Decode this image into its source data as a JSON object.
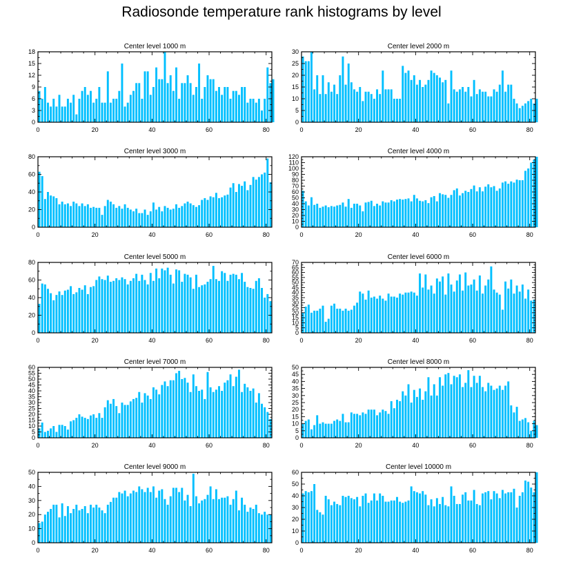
{
  "title": "Radiosonde temperature rank histograms by level",
  "colors": {
    "bar": "#00BFFF",
    "axis": "#000000",
    "background": "#FFFFFF"
  },
  "chart_data": [
    {
      "type": "bar",
      "title": "Center level 1000 m",
      "xlim": [
        0,
        82
      ],
      "ylim": [
        0,
        18
      ],
      "xticks": [
        0,
        20,
        40,
        60,
        80
      ],
      "yticks": [
        0,
        3,
        6,
        9,
        12,
        15,
        18
      ],
      "values": [
        8,
        6,
        9,
        5,
        4,
        6,
        4,
        7,
        4,
        4,
        6,
        5,
        7,
        2,
        6,
        8,
        9,
        7,
        8,
        5,
        6,
        9,
        5,
        5,
        13,
        5,
        6,
        6,
        8,
        15,
        4,
        5,
        7,
        8,
        10,
        10,
        6,
        13,
        13,
        7,
        9,
        14,
        11,
        11,
        18,
        10,
        12,
        8,
        14,
        6,
        10,
        10,
        12,
        10,
        7,
        9,
        15,
        6,
        9,
        12,
        11,
        11,
        8,
        9,
        7,
        9,
        9,
        6,
        8,
        8,
        7,
        9,
        9,
        5,
        6,
        6,
        5,
        6,
        3,
        6,
        14,
        10,
        11
      ]
    },
    {
      "type": "bar",
      "title": "Center level 2000 m",
      "xlim": [
        0,
        82
      ],
      "ylim": [
        0,
        30
      ],
      "xticks": [
        0,
        20,
        40,
        60,
        80
      ],
      "yticks": [
        0,
        5,
        10,
        15,
        20,
        25,
        30
      ],
      "values": [
        28,
        26,
        26,
        30,
        14,
        20,
        12,
        20,
        12,
        17,
        13,
        16,
        12,
        20,
        28,
        16,
        25,
        17,
        14,
        13,
        15,
        9,
        13,
        13,
        12,
        10,
        14,
        12,
        22,
        14,
        14,
        14,
        10,
        10,
        10,
        24,
        21,
        22,
        18,
        20,
        16,
        18,
        15,
        16,
        18,
        22,
        21,
        20,
        19,
        17,
        18,
        8,
        22,
        14,
        13,
        14,
        15,
        13,
        15,
        11,
        18,
        12,
        14,
        13,
        13,
        11,
        11,
        14,
        13,
        16,
        22,
        13,
        16,
        16,
        10,
        8,
        6,
        7,
        8,
        9,
        10,
        8,
        10
      ]
    },
    {
      "type": "bar",
      "title": "Center level 3000 m",
      "xlim": [
        0,
        82
      ],
      "ylim": [
        0,
        80
      ],
      "xticks": [
        0,
        20,
        40,
        60,
        80
      ],
      "yticks": [
        0,
        20,
        40,
        60,
        80
      ],
      "values": [
        63,
        58,
        32,
        40,
        36,
        35,
        33,
        26,
        29,
        26,
        27,
        24,
        29,
        27,
        24,
        27,
        24,
        26,
        22,
        23,
        22,
        22,
        14,
        24,
        31,
        29,
        26,
        22,
        24,
        21,
        26,
        22,
        20,
        18,
        21,
        16,
        16,
        20,
        14,
        18,
        28,
        20,
        23,
        18,
        24,
        22,
        20,
        21,
        26,
        22,
        24,
        27,
        29,
        27,
        25,
        23,
        25,
        31,
        33,
        31,
        35,
        34,
        39,
        33,
        34,
        36,
        37,
        45,
        50,
        40,
        49,
        47,
        52,
        42,
        48,
        57,
        54,
        57,
        60,
        62,
        78,
        51
      ]
    },
    {
      "type": "bar",
      "title": "Center level 4000 m",
      "xlim": [
        0,
        82
      ],
      "ylim": [
        0,
        120
      ],
      "xticks": [
        0,
        20,
        40,
        60,
        80
      ],
      "yticks": [
        0,
        10,
        20,
        30,
        40,
        50,
        60,
        70,
        80,
        90,
        100,
        110,
        120
      ],
      "values": [
        62,
        44,
        37,
        51,
        38,
        40,
        33,
        35,
        37,
        34,
        36,
        35,
        37,
        38,
        42,
        35,
        48,
        33,
        40,
        40,
        37,
        27,
        42,
        43,
        45,
        36,
        40,
        37,
        44,
        42,
        42,
        46,
        44,
        47,
        48,
        47,
        48,
        49,
        44,
        55,
        49,
        45,
        44,
        46,
        41,
        51,
        53,
        44,
        58,
        56,
        55,
        50,
        55,
        63,
        66,
        54,
        58,
        62,
        60,
        65,
        71,
        61,
        68,
        61,
        69,
        73,
        68,
        70,
        62,
        66,
        76,
        78,
        74,
        78,
        76,
        81,
        80,
        80,
        96,
        100,
        110,
        115,
        120
      ]
    },
    {
      "type": "bar",
      "title": "Center level 5000 m",
      "xlim": [
        0,
        82
      ],
      "ylim": [
        0,
        80
      ],
      "xticks": [
        0,
        20,
        40,
        60,
        80
      ],
      "yticks": [
        0,
        20,
        40,
        60,
        80
      ],
      "values": [
        33,
        56,
        55,
        50,
        45,
        37,
        43,
        47,
        43,
        48,
        49,
        53,
        44,
        46,
        51,
        49,
        54,
        44,
        52,
        53,
        60,
        64,
        61,
        60,
        65,
        58,
        59,
        62,
        60,
        63,
        61,
        55,
        59,
        62,
        67,
        59,
        66,
        60,
        55,
        68,
        59,
        73,
        62,
        73,
        71,
        74,
        66,
        56,
        72,
        71,
        58,
        67,
        66,
        63,
        50,
        66,
        52,
        54,
        55,
        58,
        61,
        76,
        61,
        59,
        70,
        68,
        59,
        66,
        67,
        66,
        61,
        68,
        58,
        52,
        51,
        50,
        59,
        62,
        51,
        40,
        44,
        36
      ]
    },
    {
      "type": "bar",
      "title": "Center level 6000 m",
      "xlim": [
        0,
        82
      ],
      "ylim": [
        0,
        70
      ],
      "xticks": [
        0,
        20,
        40,
        60,
        80
      ],
      "yticks": [
        0,
        5,
        10,
        15,
        20,
        25,
        30,
        35,
        40,
        45,
        50,
        55,
        60,
        65,
        70
      ],
      "values": [
        20,
        26,
        28,
        20,
        22,
        22,
        24,
        27,
        11,
        14,
        27,
        29,
        24,
        24,
        22,
        24,
        22,
        23,
        27,
        30,
        41,
        39,
        33,
        42,
        35,
        36,
        34,
        37,
        34,
        32,
        39,
        36,
        36,
        35,
        39,
        38,
        40,
        40,
        41,
        40,
        37,
        59,
        45,
        58,
        43,
        47,
        39,
        54,
        51,
        56,
        38,
        59,
        48,
        41,
        52,
        58,
        42,
        60,
        47,
        48,
        53,
        42,
        57,
        39,
        47,
        53,
        66,
        43,
        40,
        38,
        23,
        51,
        44,
        53,
        39,
        47,
        41,
        48,
        34,
        43,
        32,
        33
      ]
    },
    {
      "type": "bar",
      "title": "Center level 7000 m",
      "xlim": [
        0,
        82
      ],
      "ylim": [
        0,
        60
      ],
      "xticks": [
        0,
        20,
        40,
        60,
        80
      ],
      "yticks": [
        0,
        5,
        10,
        15,
        20,
        25,
        30,
        35,
        40,
        45,
        50,
        55,
        60
      ],
      "values": [
        8,
        13,
        5,
        6,
        8,
        10,
        5,
        11,
        11,
        10,
        7,
        14,
        15,
        17,
        20,
        18,
        17,
        16,
        19,
        20,
        17,
        21,
        17,
        26,
        32,
        29,
        33,
        27,
        21,
        30,
        28,
        28,
        31,
        33,
        34,
        39,
        30,
        38,
        36,
        33,
        43,
        41,
        37,
        45,
        48,
        44,
        49,
        49,
        55,
        57,
        50,
        51,
        47,
        39,
        54,
        44,
        40,
        41,
        33,
        56,
        43,
        39,
        41,
        44,
        40,
        47,
        49,
        54,
        44,
        52,
        58,
        39,
        46,
        43,
        40,
        42,
        30,
        38,
        29,
        26,
        22,
        16
      ]
    },
    {
      "type": "bar",
      "title": "Center level 8000 m",
      "xlim": [
        0,
        82
      ],
      "ylim": [
        0,
        50
      ],
      "xticks": [
        0,
        20,
        40,
        60,
        80
      ],
      "yticks": [
        0,
        5,
        10,
        15,
        20,
        25,
        30,
        35,
        40,
        45,
        50
      ],
      "values": [
        10,
        12,
        13,
        6,
        9,
        16,
        10,
        11,
        10,
        10,
        10,
        12,
        13,
        12,
        17,
        11,
        11,
        18,
        17,
        17,
        16,
        18,
        17,
        20,
        20,
        20,
        16,
        18,
        20,
        19,
        17,
        26,
        21,
        27,
        26,
        33,
        30,
        38,
        25,
        34,
        29,
        35,
        27,
        33,
        43,
        30,
        38,
        30,
        43,
        37,
        45,
        46,
        38,
        44,
        43,
        45,
        36,
        39,
        48,
        36,
        44,
        39,
        44,
        36,
        33,
        39,
        37,
        34,
        35,
        37,
        34,
        37,
        40,
        23,
        18,
        22,
        12,
        13,
        14,
        11,
        5,
        12,
        9
      ]
    },
    {
      "type": "bar",
      "title": "Center level 9000 m",
      "xlim": [
        0,
        82
      ],
      "ylim": [
        0,
        50
      ],
      "xticks": [
        0,
        20,
        40,
        60,
        80
      ],
      "yticks": [
        0,
        10,
        20,
        30,
        40,
        50
      ],
      "values": [
        14,
        15,
        20,
        22,
        24,
        27,
        27,
        18,
        28,
        19,
        26,
        21,
        24,
        27,
        23,
        24,
        26,
        21,
        27,
        25,
        27,
        25,
        23,
        21,
        27,
        29,
        32,
        32,
        36,
        35,
        37,
        33,
        35,
        37,
        36,
        40,
        38,
        36,
        39,
        36,
        40,
        32,
        37,
        38,
        31,
        27,
        33,
        39,
        39,
        36,
        39,
        30,
        34,
        26,
        49,
        33,
        28,
        30,
        31,
        34,
        40,
        31,
        38,
        31,
        32,
        32,
        33,
        27,
        31,
        37,
        23,
        32,
        27,
        22,
        25,
        24,
        27,
        21,
        20,
        22,
        20,
        20
      ]
    },
    {
      "type": "bar",
      "title": "Center level 10000 m",
      "xlim": [
        0,
        82
      ],
      "ylim": [
        0,
        60
      ],
      "xticks": [
        0,
        20,
        40,
        60,
        80
      ],
      "yticks": [
        0,
        10,
        20,
        30,
        40,
        50,
        60
      ],
      "values": [
        42,
        44,
        43,
        44,
        50,
        28,
        26,
        24,
        40,
        37,
        32,
        35,
        33,
        32,
        40,
        39,
        40,
        38,
        37,
        39,
        31,
        40,
        42,
        34,
        36,
        42,
        36,
        42,
        40,
        35,
        35,
        36,
        36,
        39,
        35,
        34,
        35,
        36,
        48,
        44,
        43,
        42,
        44,
        41,
        32,
        37,
        31,
        38,
        33,
        39,
        32,
        31,
        48,
        40,
        33,
        33,
        41,
        43,
        36,
        36,
        45,
        33,
        32,
        42,
        43,
        44,
        37,
        44,
        42,
        38,
        45,
        42,
        43,
        43,
        46,
        30,
        40,
        43,
        53,
        52,
        47,
        43,
        60
      ]
    }
  ]
}
